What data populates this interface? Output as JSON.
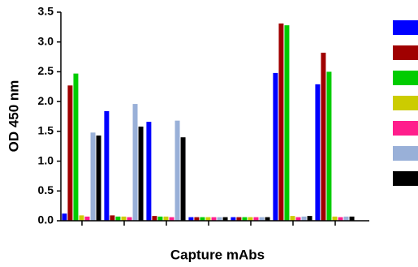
{
  "chart_data": {
    "type": "bar",
    "xlabel": "Capture mAbs",
    "ylabel": "OD 450 nm",
    "categories": [
      null,
      null,
      null,
      null,
      null,
      null,
      null
    ],
    "series": [
      {
        "color": "#0000ff",
        "values": [
          0.12,
          1.84,
          1.66,
          0.06,
          0.06,
          2.48,
          2.29
        ]
      },
      {
        "color": "#a00000",
        "values": [
          2.27,
          0.09,
          0.08,
          0.06,
          0.06,
          3.31,
          2.82
        ]
      },
      {
        "color": "#00cc00",
        "values": [
          2.47,
          0.07,
          0.07,
          0.06,
          0.06,
          3.28,
          2.5
        ]
      },
      {
        "color": "#cccc00",
        "values": [
          0.09,
          0.07,
          0.07,
          0.06,
          0.06,
          0.08,
          0.07
        ]
      },
      {
        "color": "#ff1e8c",
        "values": [
          0.07,
          0.06,
          0.06,
          0.06,
          0.06,
          0.06,
          0.06
        ]
      },
      {
        "color": "#99b0d8",
        "values": [
          1.48,
          1.96,
          1.68,
          0.06,
          0.06,
          0.07,
          0.07
        ]
      },
      {
        "color": "#000000",
        "values": [
          1.43,
          1.58,
          1.4,
          0.06,
          0.06,
          0.08,
          0.07
        ]
      }
    ],
    "ylim": [
      0,
      3.5
    ],
    "yticks": [
      {
        "value": 0,
        "label": "0.0"
      },
      0.5,
      {
        "value": 1,
        "label": "1.0"
      },
      1.5,
      {
        "value": 2,
        "label": "2.0"
      },
      2.5,
      {
        "value": 3,
        "label": "3.0"
      },
      3.5
    ],
    "legend": "right"
  }
}
